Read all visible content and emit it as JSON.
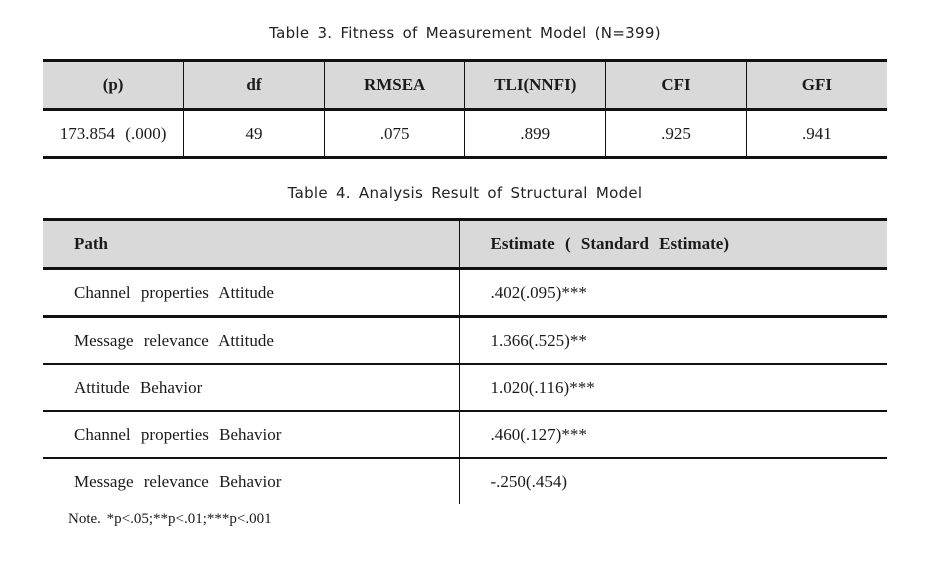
{
  "table3": {
    "caption": "Table  3. Fitness of Measurement Model (N=399)",
    "headers": [
      "(p)",
      "df",
      "RMSEA",
      "TLI(NNFI)",
      "CFI",
      "GFI"
    ],
    "row": [
      "173.854 (.000)",
      "49",
      ".075",
      ".899",
      ".925",
      ".941"
    ]
  },
  "table4": {
    "caption": "Table  4. Analysis Result of Structural Model",
    "headers": [
      "Path",
      "Estimate ( Standard Estimate)"
    ],
    "rows": [
      [
        "Channel properties  Attitude",
        ".402(.095)***"
      ],
      [
        "Message relevance  Attitude",
        "1.366(.525)**"
      ],
      [
        "Attitude  Behavior",
        "1.020(.116)***"
      ],
      [
        "Channel properties  Behavior",
        ".460(.127)***"
      ],
      [
        "Message relevance  Behavior",
        "-.250(.454)"
      ]
    ]
  },
  "note": "Note. *p<.05;**p<.01;***p<.001"
}
